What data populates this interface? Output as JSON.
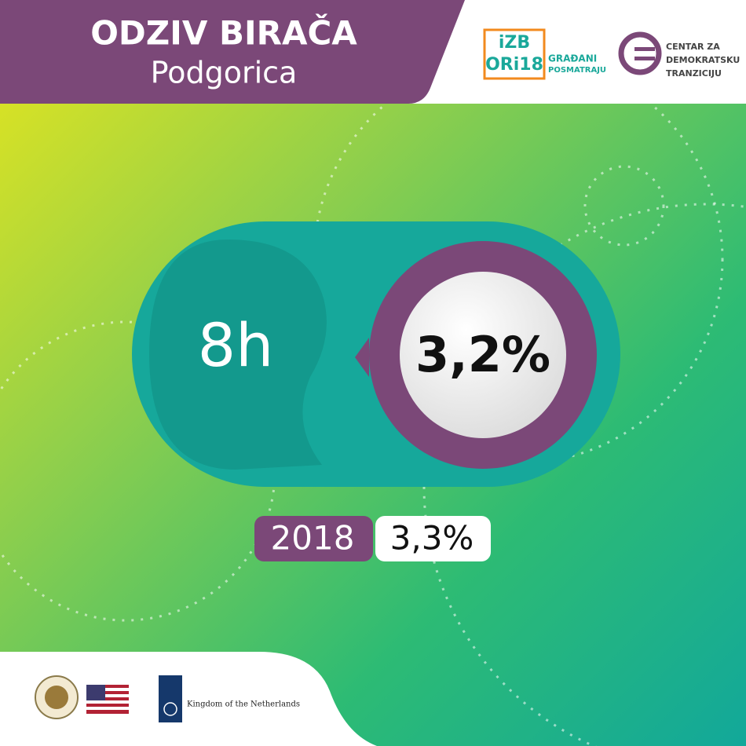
{
  "header": {
    "title": "ODZIV BIRAČA",
    "subtitle": "Podgorica"
  },
  "logos": {
    "izbori": {
      "line1": "iZB",
      "line2": "ORi18",
      "tagline1": "GRAĐANI",
      "tagline2": "POSMATRAJU"
    },
    "cdt": {
      "line1": "CENTAR ZA",
      "line2": "DEMOKRATSKU",
      "line3": "TRANZICIJU"
    }
  },
  "main": {
    "time": "8h",
    "turnout": "3,2%"
  },
  "comparison": {
    "year": "2018",
    "turnout": "3,3%"
  },
  "footer": {
    "netherlands": "Kingdom of the Netherlands"
  }
}
